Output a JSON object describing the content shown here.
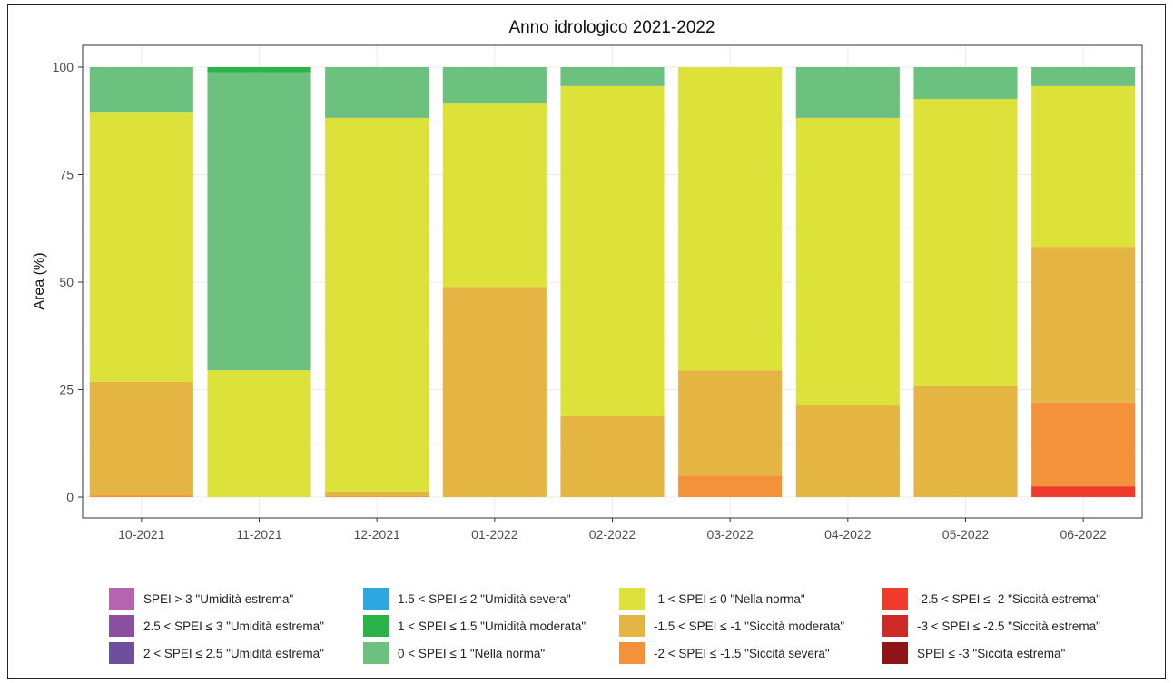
{
  "chart_data": {
    "type": "bar",
    "stacked": true,
    "title": "Anno idrologico 2021-2022",
    "xlabel": "",
    "ylabel": "Area (%)",
    "ylim": [
      0,
      100
    ],
    "yticks": [
      "0",
      "25",
      "50",
      "75",
      "100"
    ],
    "ytick_values": [
      0,
      25,
      50,
      75,
      100
    ],
    "grid": true,
    "legend_position": "bottom",
    "categories": [
      "10-2021",
      "11-2021",
      "12-2021",
      "01-2022",
      "02-2022",
      "03-2022",
      "04-2022",
      "05-2022",
      "06-2022"
    ],
    "series": [
      {
        "name": "SPEI > 3 \"Umidità estrema\"",
        "color": "#b565b0",
        "values": [
          0,
          0,
          0,
          0,
          0,
          0,
          0,
          0,
          0
        ]
      },
      {
        "name": "2.5 < SPEI ≤ 3 \"Umidità estrema\"",
        "color": "#8b4fa0",
        "values": [
          0,
          0,
          0,
          0,
          0,
          0,
          0,
          0,
          0
        ]
      },
      {
        "name": "2 < SPEI ≤ 2.5 \"Umidità estrema\"",
        "color": "#6e4f9e",
        "values": [
          0,
          0,
          0,
          0,
          0,
          0,
          0,
          0,
          0
        ]
      },
      {
        "name": "1.5 < SPEI ≤ 2 \"Umidità severa\"",
        "color": "#2ea7e0",
        "values": [
          0,
          0,
          0,
          0,
          0,
          0,
          0,
          0,
          0
        ]
      },
      {
        "name": "1 < SPEI ≤ 1.5 \"Umidità moderata\"",
        "color": "#2bb34a",
        "values": [
          0,
          1.2,
          0,
          0,
          0,
          0,
          0,
          0,
          0
        ]
      },
      {
        "name": "0 < SPEI ≤ 1 \"Nella norma\"",
        "color": "#6cc17f",
        "values": [
          10.6,
          69.3,
          11.8,
          8.5,
          4.4,
          0,
          11.8,
          7.4,
          4.4
        ]
      },
      {
        "name": "-1 < SPEI ≤ 0 \"Nella norma\"",
        "color": "#dde23a",
        "values": [
          62.6,
          29.5,
          86.9,
          42.6,
          76.8,
          70.5,
          66.9,
          66.8,
          37.4
        ]
      },
      {
        "name": "-1.5 < SPEI ≤ -1 \"Siccità moderata\"",
        "color": "#e4b542",
        "values": [
          26.4,
          0,
          1.1,
          48.9,
          18.8,
          24.5,
          21.3,
          25.8,
          36.2
        ]
      },
      {
        "name": "-2 < SPEI ≤ -1.5 \"Siccità severa\"",
        "color": "#f4923b",
        "values": [
          0.4,
          0,
          0.2,
          0,
          0,
          5.0,
          0,
          0,
          19.5
        ]
      },
      {
        "name": "-2.5 < SPEI ≤ -2 \"Siccità estrema\"",
        "color": "#ee3b2b",
        "values": [
          0,
          0,
          0,
          0,
          0,
          0,
          0,
          0,
          2.5
        ]
      },
      {
        "name": "-3 < SPEI ≤ -2.5 \"Siccità estrema\"",
        "color": "#cc2b27",
        "values": [
          0,
          0,
          0,
          0,
          0,
          0,
          0,
          0,
          0
        ]
      },
      {
        "name": "SPEI ≤ -3 \"Siccità estrema\"",
        "color": "#8f1418",
        "values": [
          0,
          0,
          0,
          0,
          0,
          0,
          0,
          0,
          0
        ]
      }
    ]
  }
}
